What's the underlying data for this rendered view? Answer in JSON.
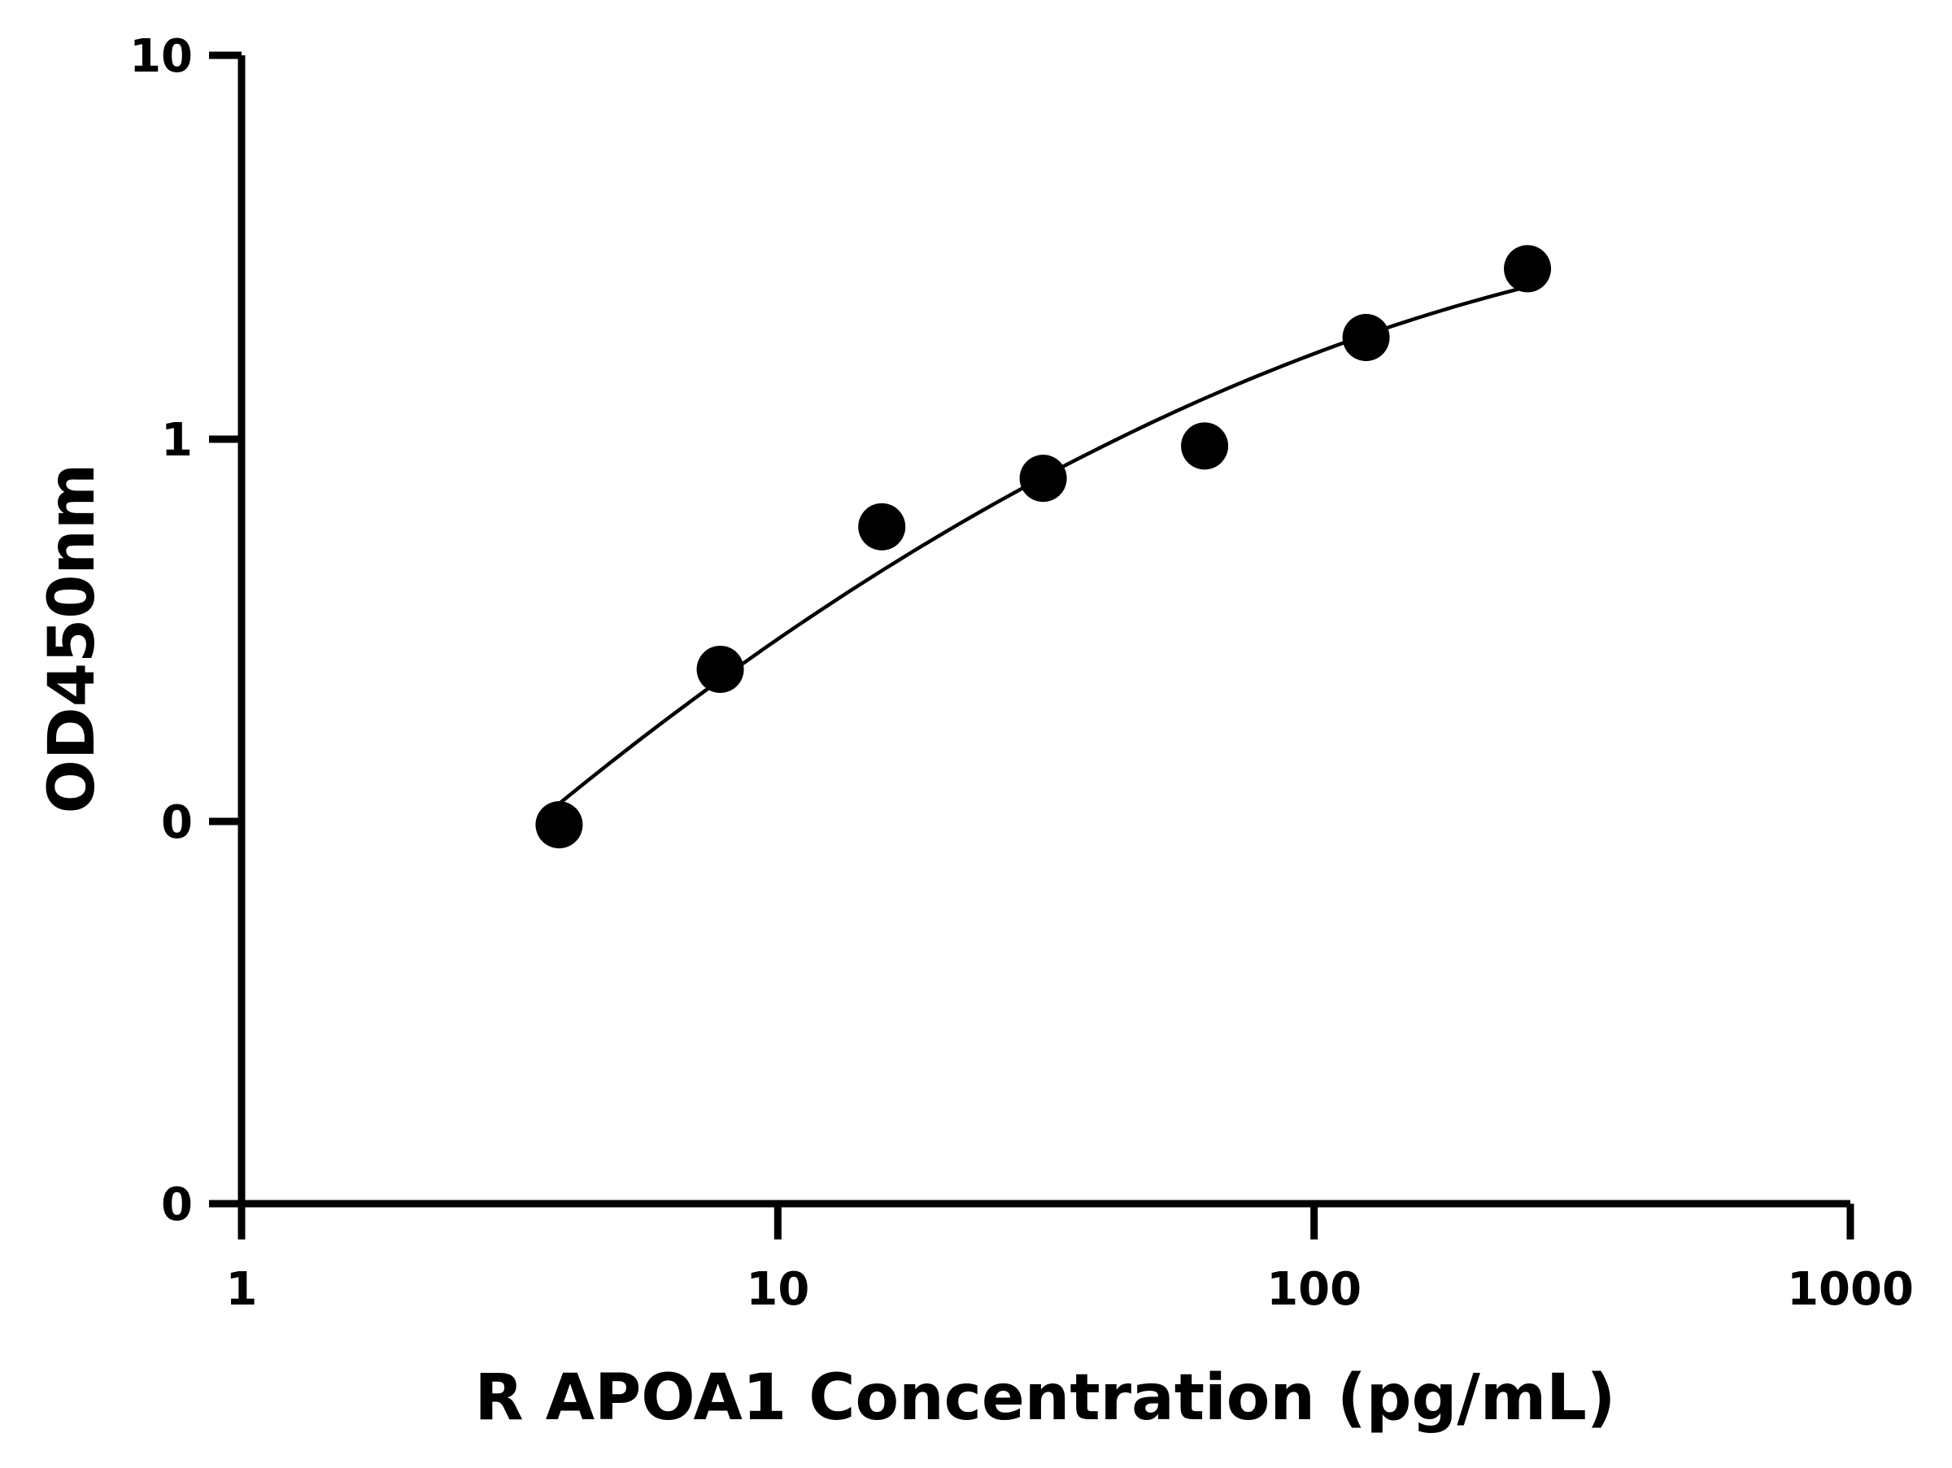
{
  "chart_data": {
    "type": "scatter",
    "title": "",
    "xlabel": "R APOA1 Concentration (pg/mL)",
    "ylabel": "OD450nm",
    "x_scale": "log",
    "xlim": [
      1,
      1000
    ],
    "x_ticks": [
      1,
      10,
      100,
      1000
    ],
    "x_tick_labels": [
      "1",
      "10",
      "100",
      "1000"
    ],
    "y_ticks": [
      0.01,
      0.1,
      1,
      10
    ],
    "y_tick_labels": [
      "0",
      "0",
      "1",
      "10"
    ],
    "grid": false,
    "legend": "none",
    "series": [
      {
        "x": [
          3.91,
          7.81,
          15.63,
          31.25,
          62.5,
          125,
          250
        ],
        "y": [
          0.098,
          0.25,
          0.59,
          0.79,
          0.96,
          1.84,
          2.78
        ],
        "marker_color": "#000000",
        "fit_line": true,
        "line_color": "#000000"
      }
    ]
  }
}
